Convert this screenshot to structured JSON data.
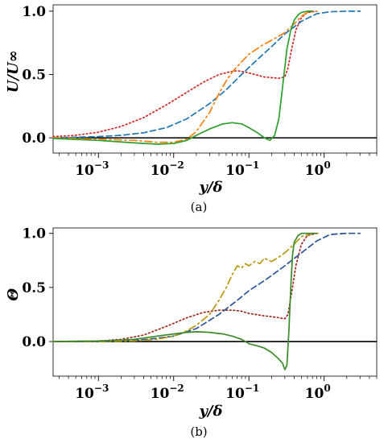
{
  "charts": [
    {
      "type": "line",
      "caption": "(a)",
      "ylabel": "U/U∞",
      "xlabel": "y/δ",
      "xscale": "log",
      "xlim": [
        0.00025,
        5
      ],
      "ylim": [
        -0.12,
        1.05
      ],
      "xticks": [
        {
          "v": 0.001,
          "base": "10",
          "exp": "−3"
        },
        {
          "v": 0.01,
          "base": "10",
          "exp": "−2"
        },
        {
          "v": 0.1,
          "base": "10",
          "exp": "−1"
        },
        {
          "v": 1,
          "base": "10",
          "exp": "0"
        }
      ],
      "yticks": [
        {
          "v": 0,
          "label": "0.0"
        },
        {
          "v": 0.5,
          "label": "0.5"
        },
        {
          "v": 1,
          "label": "1.0"
        }
      ],
      "zero_line": true,
      "series": [
        {
          "style": "dotted",
          "color": "#d62728",
          "x": [
            0.00025,
            0.0005,
            0.001,
            0.002,
            0.004,
            0.008,
            0.015,
            0.025,
            0.04,
            0.055,
            0.07,
            0.09,
            0.12,
            0.16,
            0.2,
            0.25,
            0.3,
            0.33,
            0.37,
            0.42,
            0.5,
            0.6,
            0.8
          ],
          "y": [
            0.01,
            0.02,
            0.045,
            0.09,
            0.16,
            0.26,
            0.36,
            0.44,
            0.5,
            0.52,
            0.53,
            0.52,
            0.5,
            0.48,
            0.475,
            0.47,
            0.48,
            0.55,
            0.7,
            0.85,
            0.95,
            0.99,
            1.0
          ]
        },
        {
          "style": "dashed",
          "color": "#1f77b4",
          "x": [
            0.00025,
            0.001,
            0.002,
            0.004,
            0.008,
            0.015,
            0.03,
            0.05,
            0.08,
            0.12,
            0.2,
            0.3,
            0.5,
            0.8,
            1.2,
            2,
            3
          ],
          "y": [
            0.0,
            0.01,
            0.02,
            0.04,
            0.08,
            0.15,
            0.27,
            0.38,
            0.5,
            0.6,
            0.72,
            0.82,
            0.92,
            0.98,
            0.995,
            1.0,
            1.0
          ]
        },
        {
          "style": "dashdot",
          "color": "#ff7f0e",
          "x": [
            0.00025,
            0.001,
            0.003,
            0.006,
            0.01,
            0.015,
            0.02,
            0.03,
            0.04,
            0.05,
            0.06,
            0.08,
            0.1,
            0.15,
            0.2,
            0.3,
            0.4,
            0.5,
            0.6,
            0.8
          ],
          "y": [
            0.0,
            -0.01,
            -0.02,
            -0.035,
            -0.035,
            -0.01,
            0.05,
            0.2,
            0.35,
            0.45,
            0.52,
            0.6,
            0.66,
            0.73,
            0.77,
            0.83,
            0.9,
            0.96,
            0.99,
            1.0
          ]
        },
        {
          "style": "solid",
          "color": "#2ca02c",
          "x": [
            0.00025,
            0.001,
            0.003,
            0.006,
            0.01,
            0.015,
            0.02,
            0.03,
            0.045,
            0.06,
            0.08,
            0.1,
            0.13,
            0.16,
            0.19,
            0.22,
            0.25,
            0.28,
            0.32,
            0.36,
            0.4,
            0.45,
            0.5,
            0.6,
            0.7
          ],
          "y": [
            -0.005,
            -0.02,
            -0.04,
            -0.05,
            -0.045,
            -0.02,
            0.02,
            0.07,
            0.11,
            0.12,
            0.11,
            0.08,
            0.04,
            0.0,
            -0.02,
            0.02,
            0.15,
            0.4,
            0.7,
            0.85,
            0.93,
            0.97,
            0.99,
            1.0,
            1.0
          ]
        }
      ]
    },
    {
      "type": "line",
      "caption": "(b)",
      "ylabel": "Θ",
      "xlabel": "y/δ",
      "xscale": "log",
      "xlim": [
        0.00025,
        5
      ],
      "ylim": [
        -0.32,
        1.05
      ],
      "xticks": [
        {
          "v": 0.001,
          "base": "10",
          "exp": "−3"
        },
        {
          "v": 0.01,
          "base": "10",
          "exp": "−2"
        },
        {
          "v": 0.1,
          "base": "10",
          "exp": "−1"
        },
        {
          "v": 1,
          "base": "10",
          "exp": "0"
        }
      ],
      "yticks": [
        {
          "v": 0,
          "label": "0.0"
        },
        {
          "v": 0.5,
          "label": "0.5"
        },
        {
          "v": 1,
          "label": "1.0"
        }
      ],
      "zero_line": true,
      "series": [
        {
          "style": "dotted",
          "color": "#a0281e",
          "x": [
            0.00025,
            0.001,
            0.002,
            0.004,
            0.008,
            0.015,
            0.025,
            0.04,
            0.06,
            0.08,
            0.1,
            0.15,
            0.2,
            0.25,
            0.3,
            0.33,
            0.37,
            0.42,
            0.5,
            0.6,
            0.8
          ],
          "y": [
            0.0,
            0.005,
            0.02,
            0.06,
            0.14,
            0.22,
            0.27,
            0.29,
            0.29,
            0.28,
            0.26,
            0.24,
            0.23,
            0.22,
            0.21,
            0.25,
            0.45,
            0.7,
            0.9,
            0.98,
            1.0
          ]
        },
        {
          "style": "dashed",
          "color": "#2a5599",
          "x": [
            0.00025,
            0.001,
            0.003,
            0.006,
            0.01,
            0.02,
            0.04,
            0.07,
            0.1,
            0.15,
            0.2,
            0.3,
            0.5,
            0.8,
            1.2,
            2,
            3
          ],
          "y": [
            0.0,
            0.0,
            0.01,
            0.03,
            0.05,
            0.12,
            0.25,
            0.38,
            0.47,
            0.55,
            0.61,
            0.7,
            0.82,
            0.93,
            0.99,
            1.0,
            1.0
          ]
        },
        {
          "style": "dashdot",
          "color": "#b8960e",
          "x": [
            0.00025,
            0.001,
            0.003,
            0.006,
            0.01,
            0.015,
            0.02,
            0.03,
            0.04,
            0.05,
            0.06,
            0.07,
            0.08,
            0.09,
            0.1,
            0.12,
            0.14,
            0.16,
            0.2,
            0.25,
            0.3,
            0.4,
            0.5,
            0.7,
            0.9
          ],
          "y": [
            0.0,
            0.0,
            0.005,
            0.02,
            0.05,
            0.1,
            0.15,
            0.25,
            0.38,
            0.5,
            0.62,
            0.7,
            0.68,
            0.72,
            0.7,
            0.74,
            0.72,
            0.77,
            0.74,
            0.78,
            0.82,
            0.9,
            0.97,
            1.0,
            1.0
          ]
        },
        {
          "style": "solid",
          "color": "#3a8a2a",
          "x": [
            0.00025,
            0.001,
            0.003,
            0.006,
            0.01,
            0.015,
            0.02,
            0.03,
            0.045,
            0.06,
            0.08,
            0.1,
            0.13,
            0.16,
            0.2,
            0.24,
            0.28,
            0.3,
            0.32,
            0.34,
            0.36,
            0.38,
            0.4,
            0.45,
            0.5,
            0.6,
            0.8
          ],
          "y": [
            0.0,
            0.005,
            0.02,
            0.05,
            0.07,
            0.085,
            0.09,
            0.085,
            0.07,
            0.05,
            0.02,
            -0.02,
            -0.04,
            -0.06,
            -0.1,
            -0.15,
            -0.2,
            -0.26,
            -0.22,
            0.1,
            0.5,
            0.8,
            0.92,
            0.98,
            1.0,
            1.0,
            1.0
          ]
        }
      ]
    }
  ]
}
